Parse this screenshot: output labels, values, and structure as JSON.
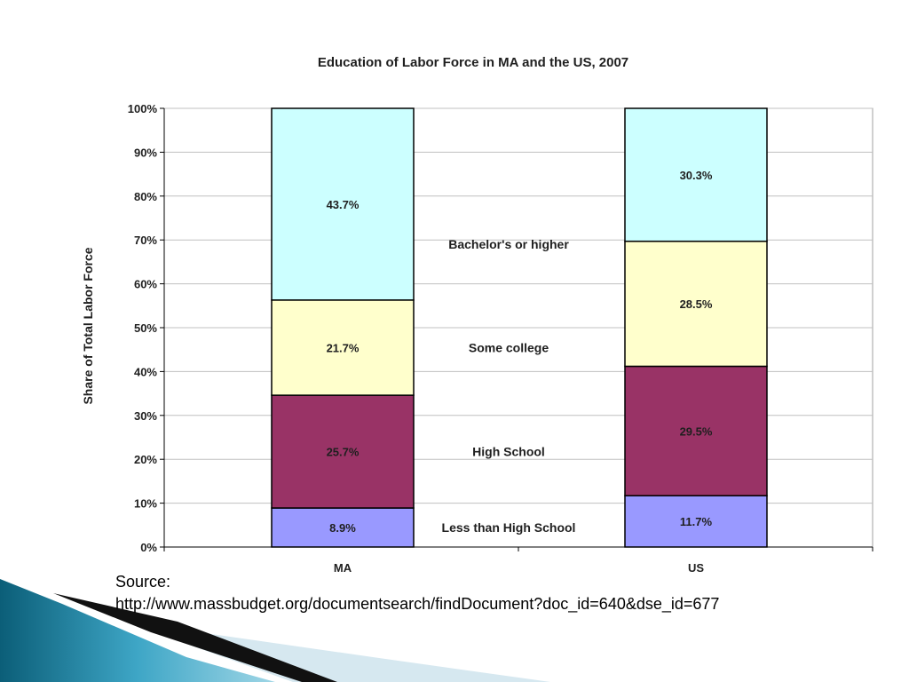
{
  "source": {
    "label": "Source:",
    "url": "http://www.massbudget.org/documentsearch/findDocument?doc_id=640&dse_id=677"
  },
  "chart_data": {
    "type": "bar",
    "stacked": true,
    "title": "Education of Labor Force in MA and the US, 2007",
    "xlabel": "",
    "ylabel": "Share of Total Labor Force",
    "ylim": [
      0,
      100
    ],
    "ytick_labels": [
      "0%",
      "10%",
      "20%",
      "30%",
      "40%",
      "50%",
      "60%",
      "70%",
      "80%",
      "90%",
      "100%"
    ],
    "categories": [
      "MA",
      "US"
    ],
    "grid": true,
    "series": [
      {
        "name": "Less than High School",
        "values": [
          8.9,
          11.7
        ],
        "labels": [
          "8.9%",
          "11.7%"
        ],
        "color": "#9999ff"
      },
      {
        "name": "High School",
        "values": [
          25.7,
          29.5
        ],
        "labels": [
          "25.7%",
          "29.5%"
        ],
        "color": "#993366"
      },
      {
        "name": "Some college",
        "values": [
          21.7,
          28.5
        ],
        "labels": [
          "21.7%",
          "28.5%"
        ],
        "color": "#ffffcc"
      },
      {
        "name": "Bachelor's or higher",
        "values": [
          43.7,
          30.3
        ],
        "labels": [
          "43.7%",
          "30.3%"
        ],
        "color": "#ccffff"
      }
    ]
  }
}
